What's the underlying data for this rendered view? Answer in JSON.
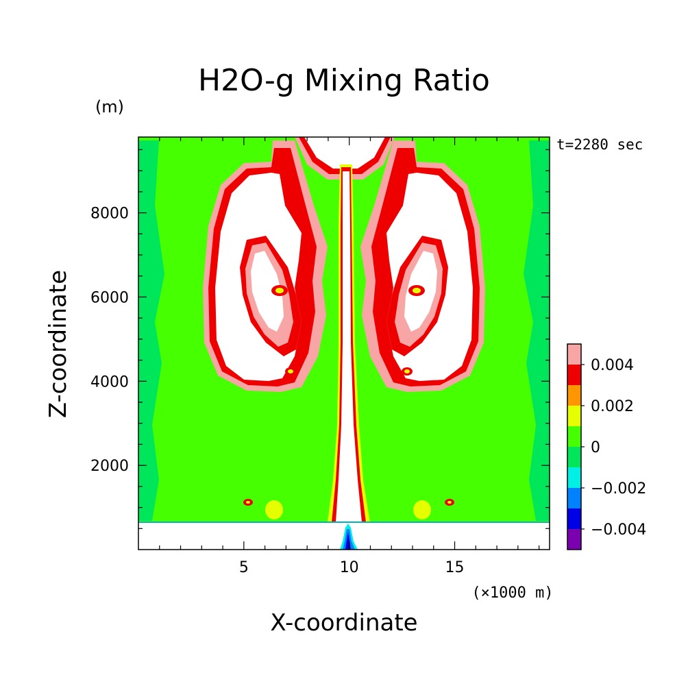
{
  "chart_data": {
    "type": "heatmap",
    "title": "H2O-g Mixing Ratio",
    "xlabel": "X-coordinate",
    "ylabel": "Z-coordinate",
    "x_unit": "(×1000 m)",
    "y_unit": "(m)",
    "time_label": "t=2280 sec",
    "xlim": [
      0,
      19.5
    ],
    "ylim": [
      0,
      9800
    ],
    "x_ticks": [
      5,
      10,
      15
    ],
    "x_tick_labels": [
      "5",
      "10",
      "15"
    ],
    "y_ticks": [
      2000,
      4000,
      6000,
      8000
    ],
    "y_tick_labels": [
      "2000",
      "4000",
      "6000",
      "8000"
    ],
    "ground_level": 700,
    "grid": false,
    "colorbar": {
      "placement": "right",
      "levels": [
        -0.005,
        -0.004,
        -0.003,
        -0.002,
        -0.001,
        0,
        0.001,
        0.002,
        0.003,
        0.004,
        0.005
      ],
      "colors": [
        "#7a00b0",
        "#0000e6",
        "#0082ff",
        "#00f0e6",
        "#00e65a",
        "#46ff00",
        "#e6ff00",
        "#ff9600",
        "#ee0000",
        "#f8a5a5"
      ],
      "tick_values": [
        -0.004,
        -0.002,
        0,
        0.002,
        0.004
      ],
      "tick_labels": [
        "−0.004",
        "−0.002",
        "0",
        "0.002",
        "0.004"
      ]
    },
    "field_summary": {
      "background_value_range": [
        0,
        0.001
      ],
      "side_bands_value_range": [
        -0.001,
        0
      ],
      "column_center_x": 10.2,
      "column_halfwidth_x": 0.55,
      "column_value_min": 0.005,
      "vortex_pairs": [
        {
          "center_x": 6.3,
          "center_z": 6400,
          "value_min": 0.005
        },
        {
          "center_x": 14.1,
          "center_z": 6400,
          "value_min": 0.005
        }
      ],
      "surface_min_value": -0.005
    }
  }
}
